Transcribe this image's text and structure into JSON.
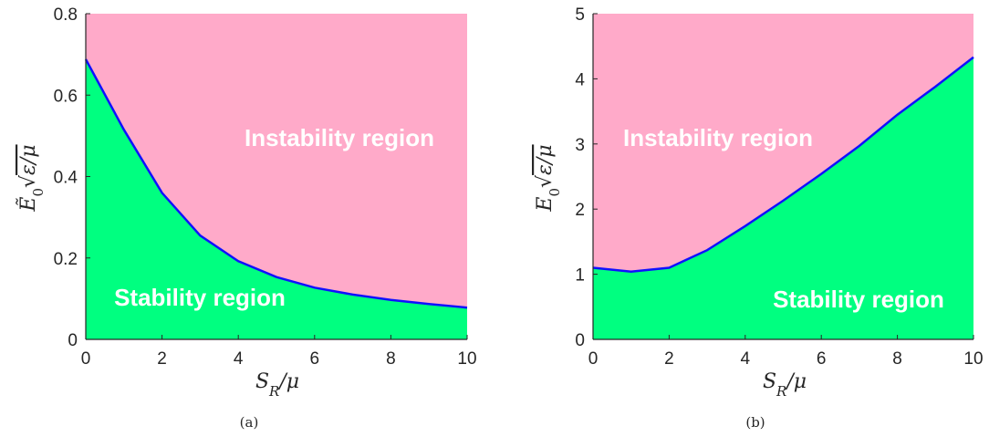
{
  "colors": {
    "instability_fill": "#FFAAC9",
    "stability_fill": "#00FF80",
    "boundary_line": "#1010FF",
    "axis": "#262626"
  },
  "chart_data": [
    {
      "type": "area",
      "panel": "(a)",
      "xlabel": "S_R/μ",
      "ylabel": "Ẽ₀√(ε/μ)",
      "xlim": [
        0,
        10
      ],
      "ylim": [
        0,
        0.8
      ],
      "xticks": [
        0,
        2,
        4,
        6,
        8,
        10
      ],
      "yticks": [
        0,
        0.2,
        0.4,
        0.6,
        0.8
      ],
      "x": [
        0,
        1,
        2,
        3,
        4,
        5,
        6,
        7,
        8,
        9,
        10
      ],
      "boundary": [
        0.688,
        0.515,
        0.36,
        0.255,
        0.192,
        0.153,
        0.127,
        0.11,
        0.097,
        0.087,
        0.078
      ],
      "region_labels": {
        "upper": "Instability region",
        "lower": "Stability region"
      },
      "grid": false
    },
    {
      "type": "area",
      "panel": "(b)",
      "xlabel": "S_R/μ",
      "ylabel": "E₀√(ε/μ)",
      "xlim": [
        0,
        10
      ],
      "ylim": [
        0,
        5
      ],
      "xticks": [
        0,
        2,
        4,
        6,
        8,
        10
      ],
      "yticks": [
        0,
        1,
        2,
        3,
        4,
        5
      ],
      "x": [
        0,
        1,
        2,
        3,
        4,
        5,
        6,
        7,
        8,
        9,
        10
      ],
      "boundary": [
        1.1,
        1.04,
        1.1,
        1.37,
        1.74,
        2.13,
        2.54,
        2.97,
        3.45,
        3.88,
        4.33
      ],
      "region_labels": {
        "upper": "Instability region",
        "lower": "Stability region"
      },
      "grid": false
    }
  ]
}
